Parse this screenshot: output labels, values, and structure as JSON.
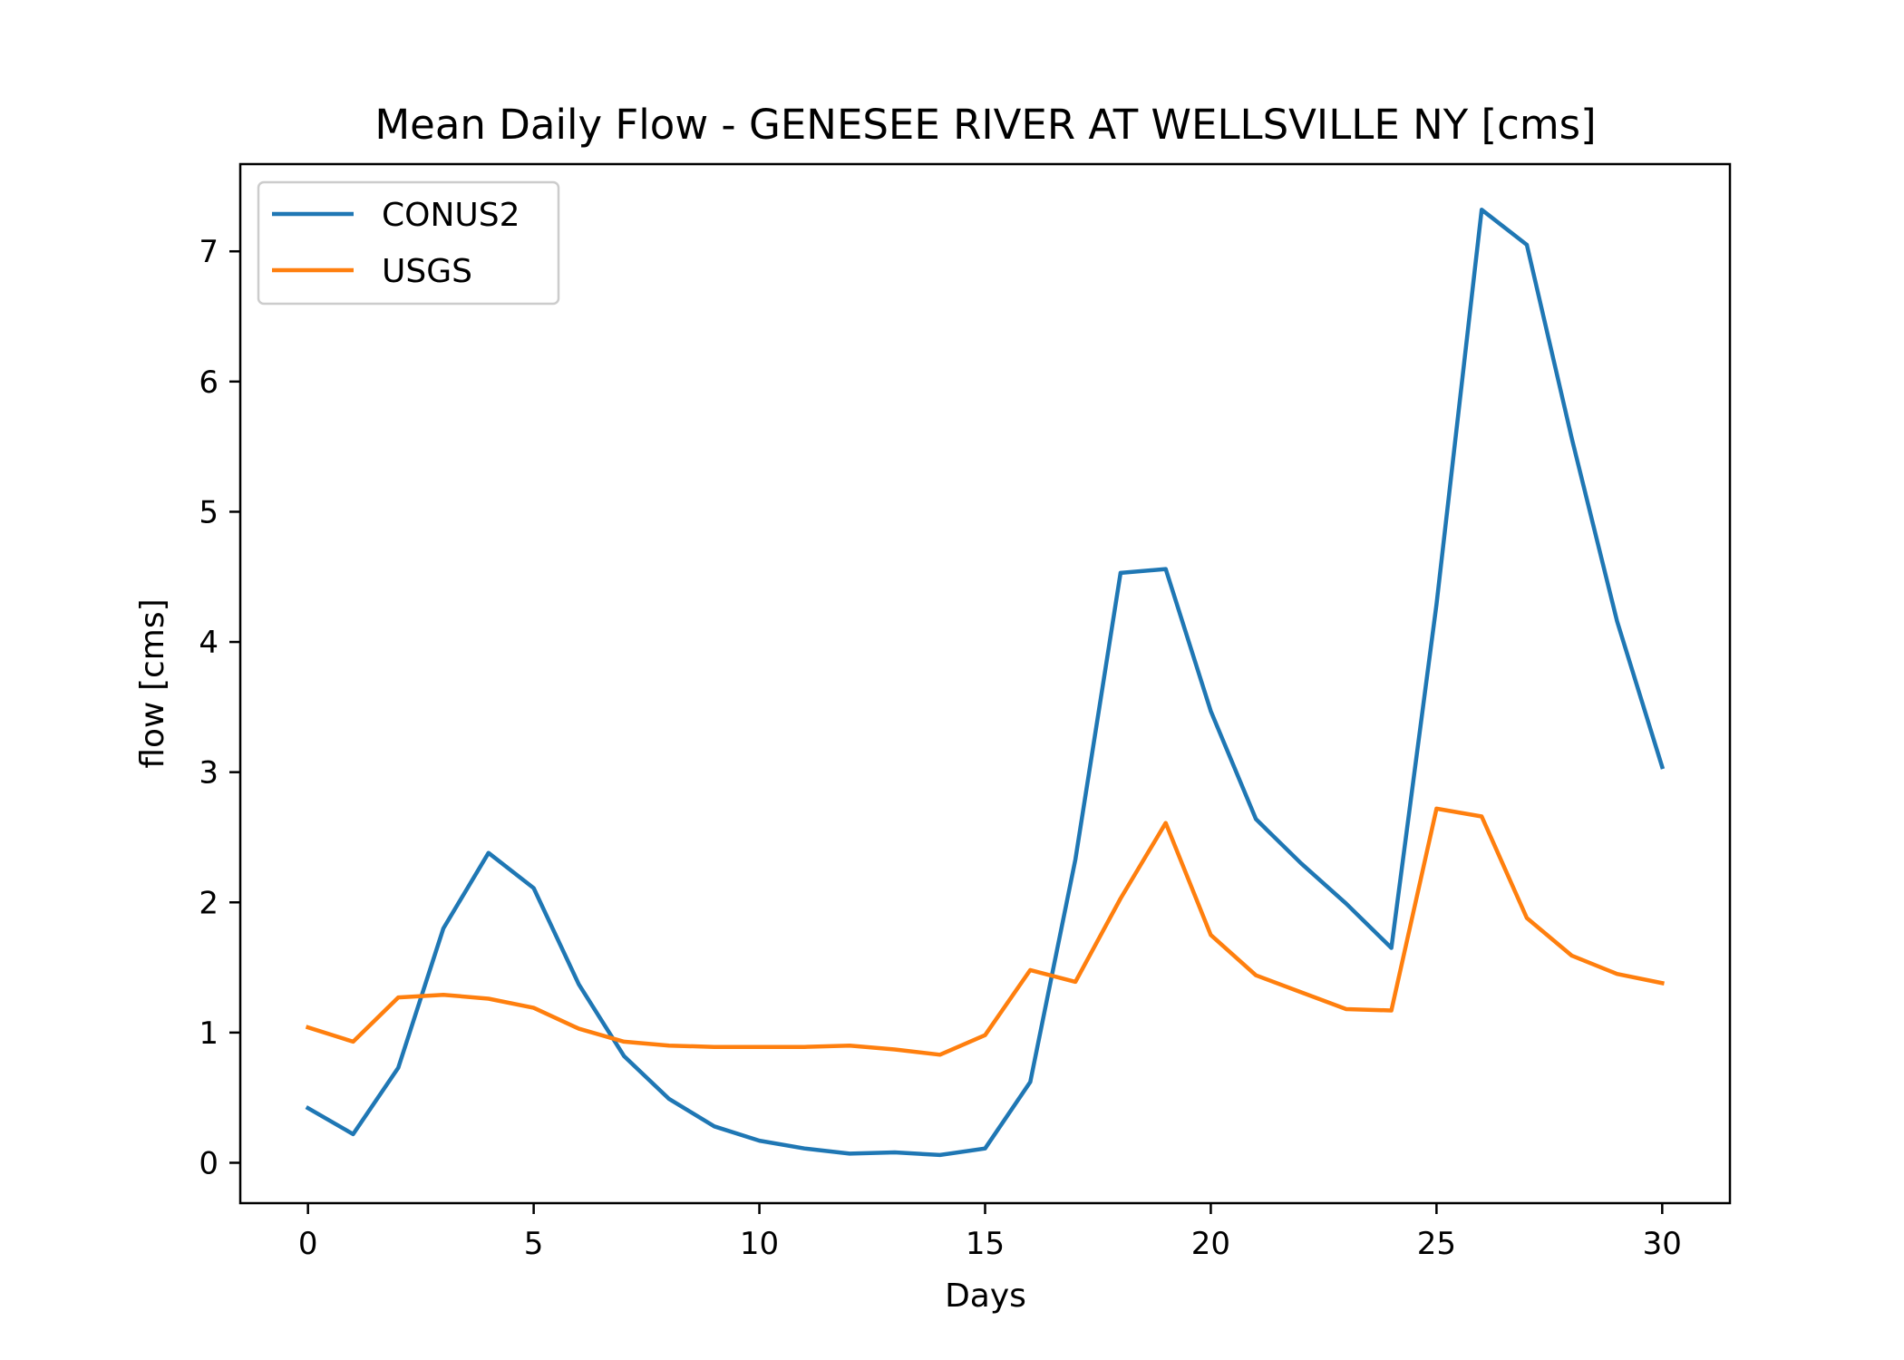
{
  "chart_data": {
    "type": "line",
    "title": "Mean Daily Flow - GENESEE RIVER AT WELLSVILLE NY [cms]",
    "xlabel": "Days",
    "ylabel": "flow [cms]",
    "xlim": [
      -1.5,
      31.5
    ],
    "ylim": [
      -0.31,
      7.67
    ],
    "xticks": [
      0,
      5,
      10,
      15,
      20,
      25,
      30
    ],
    "yticks": [
      0,
      1,
      2,
      3,
      4,
      5,
      6,
      7
    ],
    "grid": false,
    "legend_position": "top-left",
    "x": [
      0,
      1,
      2,
      3,
      4,
      5,
      6,
      7,
      8,
      9,
      10,
      11,
      12,
      13,
      14,
      15,
      16,
      17,
      18,
      19,
      20,
      21,
      22,
      23,
      24,
      25,
      26,
      27,
      28,
      29,
      30
    ],
    "series": [
      {
        "name": "CONUS2",
        "color": "#1f77b4",
        "values": [
          0.42,
          0.22,
          0.73,
          1.8,
          2.38,
          2.11,
          1.37,
          0.82,
          0.49,
          0.28,
          0.17,
          0.11,
          0.07,
          0.08,
          0.06,
          0.11,
          0.62,
          2.33,
          4.53,
          4.56,
          3.47,
          2.64,
          2.3,
          1.99,
          1.65,
          4.29,
          7.32,
          7.05,
          5.56,
          4.16,
          3.04
        ]
      },
      {
        "name": "USGS",
        "color": "#ff7f0e",
        "values": [
          1.04,
          0.93,
          1.27,
          1.29,
          1.26,
          1.19,
          1.03,
          0.93,
          0.9,
          0.89,
          0.89,
          0.89,
          0.9,
          0.87,
          0.83,
          0.98,
          1.48,
          1.39,
          2.03,
          2.61,
          1.75,
          1.44,
          1.31,
          1.18,
          1.17,
          2.72,
          2.66,
          1.88,
          1.59,
          1.45,
          1.38
        ]
      }
    ]
  }
}
